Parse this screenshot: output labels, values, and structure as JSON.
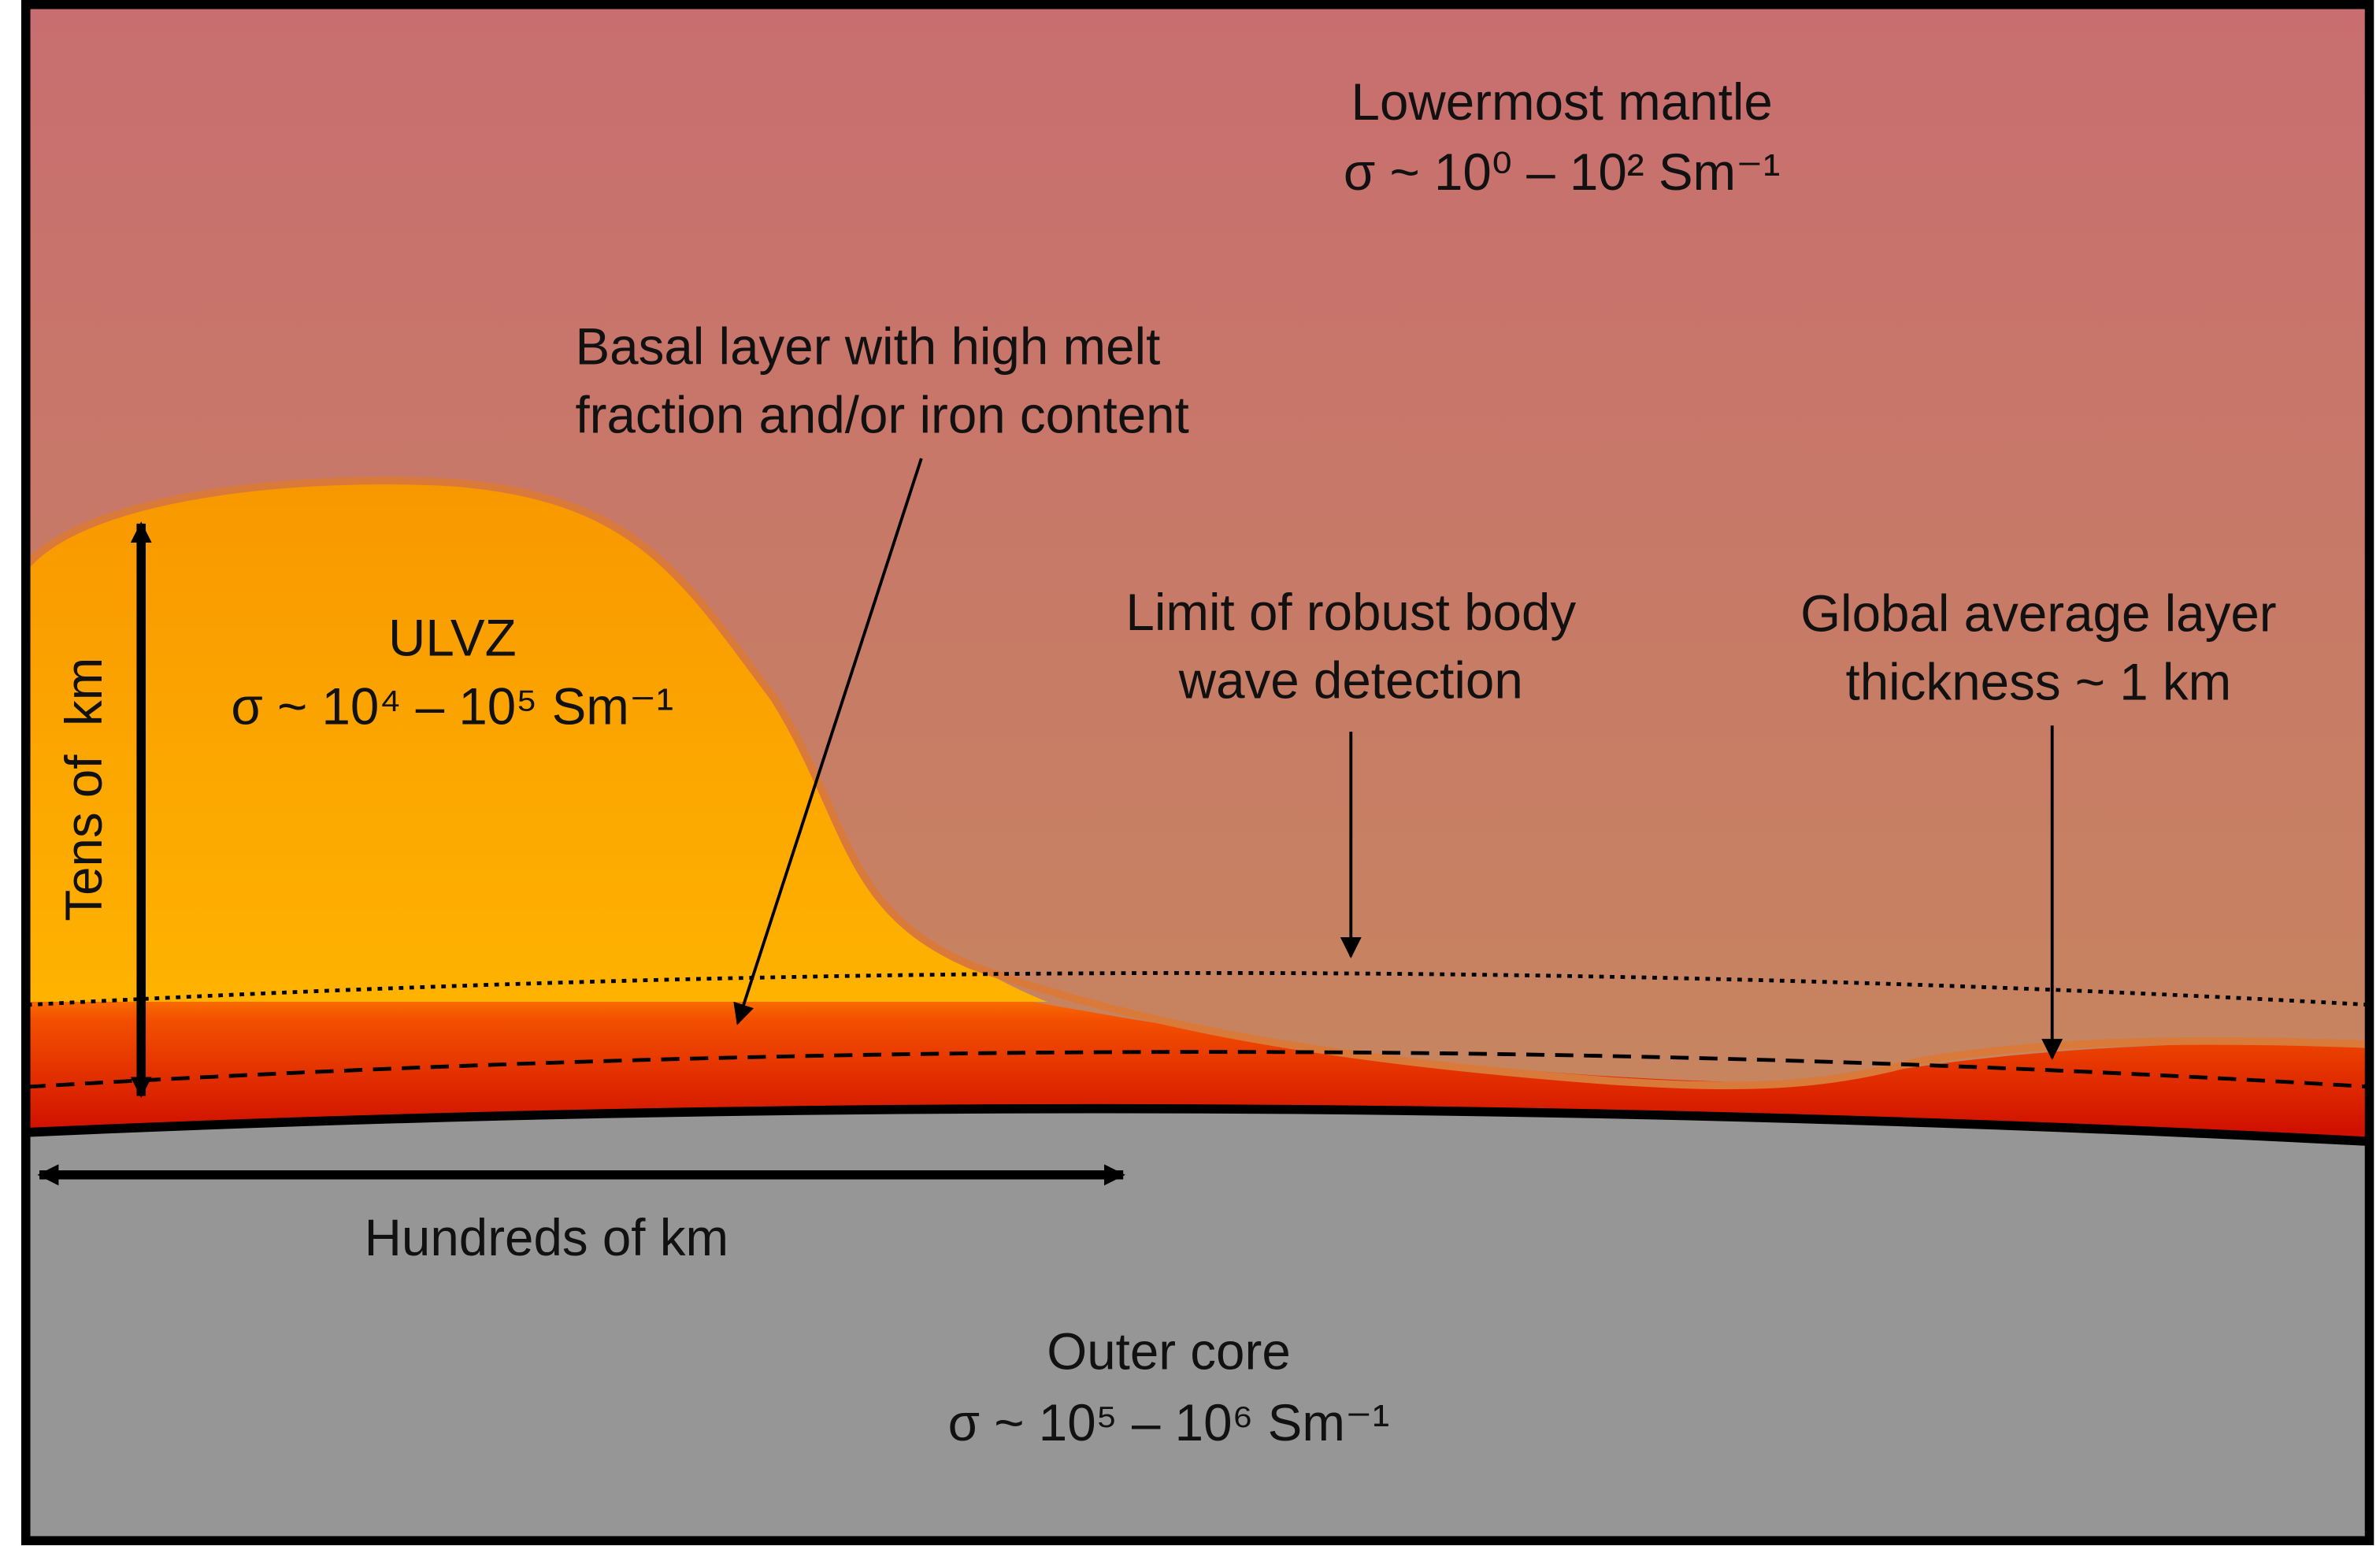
{
  "labels": {
    "lowermost_mantle": {
      "title": "Lowermost mantle",
      "conductivity": "σ ~ 10⁰ – 10² Sm⁻¹"
    },
    "basal_layer": [
      "Basal layer with high melt",
      "fraction and/or iron content"
    ],
    "ulvz": {
      "title": "ULVZ",
      "conductivity": "σ ~ 10⁴ – 10⁵ Sm⁻¹"
    },
    "detection_limit": [
      "Limit of robust body",
      "wave detection"
    ],
    "global_layer": [
      "Global average layer",
      "thickness ~ 1 km"
    ],
    "vertical_scale": "Tens of  km",
    "horizontal_scale": "Hundreds of km",
    "outer_core": {
      "title": "Outer core",
      "conductivity": "σ ~ 10⁵ – 10⁶ Sm⁻¹"
    }
  }
}
